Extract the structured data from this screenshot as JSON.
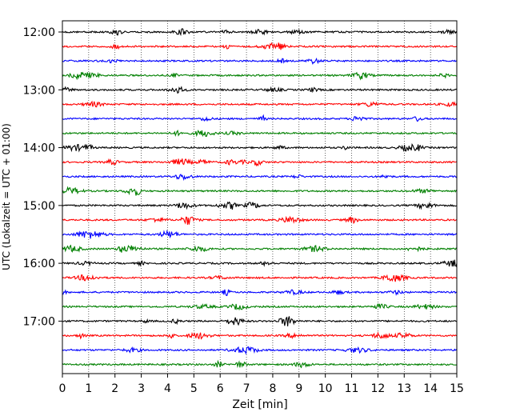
{
  "chart_data": {
    "type": "line",
    "title": "",
    "xlabel": "Zeit  [min]",
    "ylabel": "UTC (Lokalzeit = UTC + 01:00)",
    "xlim": [
      0,
      15
    ],
    "x_ticks": [
      "0",
      "1",
      "2",
      "3",
      "4",
      "5",
      "6",
      "7",
      "8",
      "9",
      "10",
      "11",
      "12",
      "13",
      "14",
      "15"
    ],
    "y_ticks": [
      "12:00",
      "13:00",
      "14:00",
      "15:00",
      "16:00",
      "17:00"
    ],
    "grid": "vertical dotted",
    "trace_colors": [
      "#000000",
      "#ff0000",
      "#0000ff",
      "#008000"
    ],
    "series": [
      {
        "start": "12:00",
        "color": "#000000"
      },
      {
        "start": "12:15",
        "color": "#ff0000"
      },
      {
        "start": "12:30",
        "color": "#0000ff"
      },
      {
        "start": "12:45",
        "color": "#008000"
      },
      {
        "start": "13:00",
        "color": "#000000"
      },
      {
        "start": "13:15",
        "color": "#ff0000"
      },
      {
        "start": "13:30",
        "color": "#0000ff"
      },
      {
        "start": "13:45",
        "color": "#008000"
      },
      {
        "start": "14:00",
        "color": "#000000"
      },
      {
        "start": "14:15",
        "color": "#ff0000"
      },
      {
        "start": "14:30",
        "color": "#0000ff"
      },
      {
        "start": "14:45",
        "color": "#008000"
      },
      {
        "start": "15:00",
        "color": "#000000"
      },
      {
        "start": "15:15",
        "color": "#ff0000"
      },
      {
        "start": "15:30",
        "color": "#0000ff"
      },
      {
        "start": "15:45",
        "color": "#008000"
      },
      {
        "start": "16:00",
        "color": "#000000"
      },
      {
        "start": "16:15",
        "color": "#ff0000"
      },
      {
        "start": "16:30",
        "color": "#0000ff"
      },
      {
        "start": "16:45",
        "color": "#008000"
      },
      {
        "start": "17:00",
        "color": "#000000"
      },
      {
        "start": "17:15",
        "color": "#ff0000"
      },
      {
        "start": "17:30",
        "color": "#0000ff"
      },
      {
        "start": "17:45",
        "color": "#008000"
      }
    ]
  }
}
